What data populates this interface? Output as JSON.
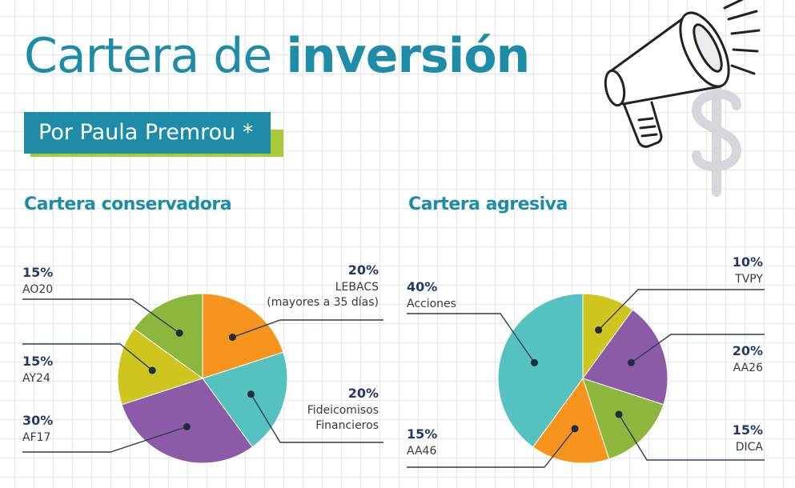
{
  "header": {
    "title_light": "Cartera de ",
    "title_bold": "inversión",
    "byline": "Por Paula Premrou *"
  },
  "colors": {
    "accent": "#1e8ca6",
    "byline_shadow": "#a8c93a",
    "label_dark": "#243a63"
  },
  "icons": [
    "megaphone-icon",
    "dollar-sign-icon"
  ],
  "chart_data": [
    {
      "type": "pie",
      "title": "Cartera conservadora",
      "slices": [
        {
          "pct_label": "20%",
          "name_lines": [
            "LEBACS",
            "(mayores a 35 días)"
          ],
          "value": 20,
          "color": "#f7941d"
        },
        {
          "pct_label": "20%",
          "name_lines": [
            "Fideicomisos",
            "Financieros"
          ],
          "value": 20,
          "color": "#56c2bf"
        },
        {
          "pct_label": "30%",
          "name_lines": [
            "AF17"
          ],
          "value": 30,
          "color": "#8c5ba8"
        },
        {
          "pct_label": "15%",
          "name_lines": [
            "AY24"
          ],
          "value": 15,
          "color": "#cfc51f"
        },
        {
          "pct_label": "15%",
          "name_lines": [
            "AO20"
          ],
          "value": 15,
          "color": "#8db63c"
        }
      ]
    },
    {
      "type": "pie",
      "title": "Cartera agresiva",
      "slices": [
        {
          "pct_label": "10%",
          "name_lines": [
            "TVPY"
          ],
          "value": 10,
          "color": "#cfc51f"
        },
        {
          "pct_label": "20%",
          "name_lines": [
            "AA26"
          ],
          "value": 20,
          "color": "#8c5ba8"
        },
        {
          "pct_label": "15%",
          "name_lines": [
            "DICA"
          ],
          "value": 15,
          "color": "#8db63c"
        },
        {
          "pct_label": "15%",
          "name_lines": [
            "AA46"
          ],
          "value": 15,
          "color": "#f7941d"
        },
        {
          "pct_label": "40%",
          "name_lines": [
            "Acciones"
          ],
          "value": 40,
          "color": "#56c2bf"
        }
      ]
    }
  ]
}
